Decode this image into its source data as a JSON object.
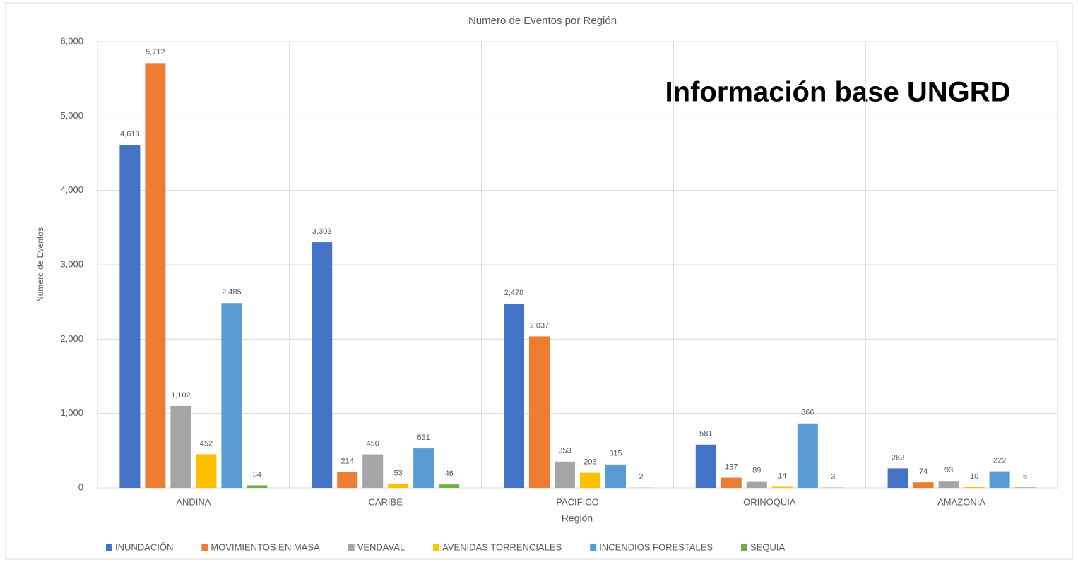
{
  "chart_data": {
    "type": "bar",
    "title": "Numero de Eventos por Región",
    "annotation": "Información base UNGRD",
    "x_label": "Región",
    "y_label": "Numero de Eventos",
    "categories": [
      "ANDINA",
      "CARIBE",
      "PACIFICO",
      "ORINOQUIA",
      "AMAZONIA"
    ],
    "series": [
      {
        "name": "INUNDACIÓN",
        "color": "#4472c4",
        "values": [
          4613,
          3303,
          2478,
          581,
          262
        ],
        "value_labels": [
          "4,613",
          "3,303",
          "2,478",
          "581",
          "262"
        ]
      },
      {
        "name": "MOVIMIENTOS EN MASA",
        "color": "#ed7d31",
        "values": [
          5712,
          214,
          2037,
          137,
          74
        ],
        "value_labels": [
          "5,712",
          "214",
          "2,037",
          "137",
          "74"
        ]
      },
      {
        "name": "VENDAVAL",
        "color": "#a5a5a5",
        "values": [
          1102,
          450,
          353,
          89,
          93
        ],
        "value_labels": [
          "1,102",
          "450",
          "353",
          "89",
          "93"
        ]
      },
      {
        "name": "AVENIDAS TORRENCIALES",
        "color": "#ffc000",
        "values": [
          452,
          53,
          203,
          14,
          10
        ],
        "value_labels": [
          "452",
          "53",
          "203",
          "14",
          "10"
        ]
      },
      {
        "name": "INCENDIOS FORESTALES",
        "color": "#5b9bd5",
        "values": [
          2485,
          531,
          315,
          866,
          222
        ],
        "value_labels": [
          "2,485",
          "531",
          "315",
          "866",
          "222"
        ]
      },
      {
        "name": "SEQUIA",
        "color": "#70ad47",
        "values": [
          34,
          46,
          2,
          3,
          6
        ],
        "value_labels": [
          "34",
          "46",
          "2",
          "3",
          "6"
        ]
      }
    ],
    "ylim": [
      0,
      6000
    ],
    "yticks": [
      0,
      {
        "value": 1000,
        "label": "1,000"
      },
      {
        "value": 2000,
        "label": "2,000"
      },
      {
        "value": 3000,
        "label": "3,000"
      },
      {
        "value": 4000,
        "label": "4,000"
      },
      {
        "value": 5000,
        "label": "5,000"
      },
      {
        "value": 6000,
        "label": "6,000"
      }
    ],
    "grid": true,
    "legend": "bottom"
  }
}
